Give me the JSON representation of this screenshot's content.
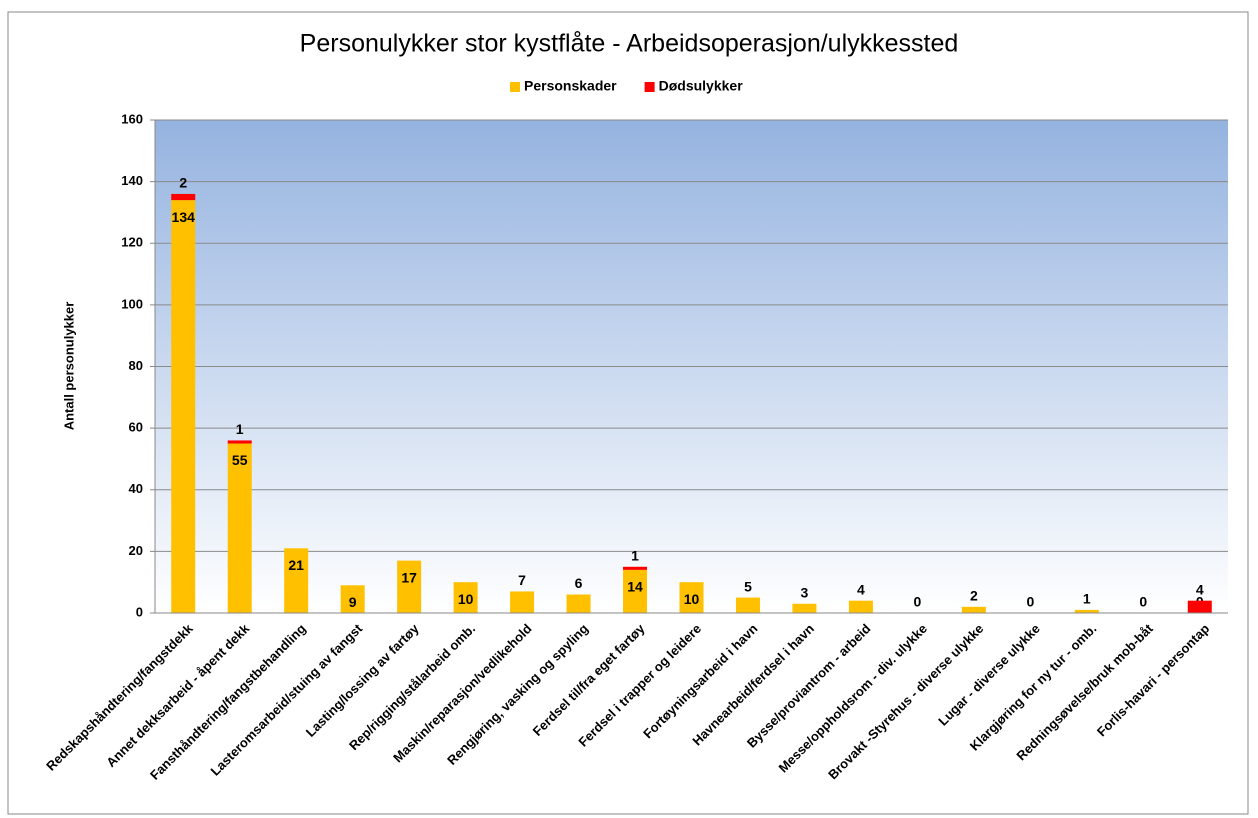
{
  "chart_data": {
    "type": "stacked_bar",
    "title": "Personulykker stor kystflåte - Arbeidsoperasjon/ulykkessted",
    "y_label": "Antall personulykker",
    "categories": [
      "Redskapshåndtering/fangstdekk",
      "Annet dekksarbeid - åpent dekk",
      "Fansthåndtering/fangstbehandling",
      "Lasteromsarbeid/stuing av fangst",
      "Lasting/lossing av fartøy",
      "Rep/rigging/stålarbeid omb.",
      "Maskin/reparasjon/vedlikehold",
      "Rengjøring, vasking og spyling",
      "Ferdsel til/fra eget fartøy",
      "Ferdsel i trapper og leidere",
      "Fortøyningsarbeid i havn",
      "Havnearbeid/ferdsel i havn",
      "Bysse/proviantrom - arbeid",
      "Messe/oppholdsrom - div. ulykke",
      "Brovakt -Styrehus - diverse ulykke",
      "Lugar - diverse ulykke",
      "Klargjøring for ny tur - omb.",
      "Redningsøvelse/bruk mob-båt",
      "Forlis-havari - persontap"
    ],
    "series": [
      {
        "name": "Personskader",
        "color": "#ffc000",
        "values": [
          134,
          55,
          21,
          9,
          17,
          10,
          7,
          6,
          14,
          10,
          5,
          3,
          4,
          0,
          2,
          0,
          1,
          0,
          0
        ]
      },
      {
        "name": "Dødsulykker",
        "color": "#ff0000",
        "values": [
          2,
          1,
          0,
          0,
          0,
          0,
          0,
          0,
          1,
          0,
          0,
          0,
          0,
          0,
          0,
          0,
          0,
          0,
          4
        ]
      }
    ],
    "ylim": [
      0,
      160
    ],
    "yticks": [
      0,
      20,
      40,
      60,
      80,
      100,
      120,
      140,
      160
    ],
    "grid": true,
    "legend": "top"
  }
}
